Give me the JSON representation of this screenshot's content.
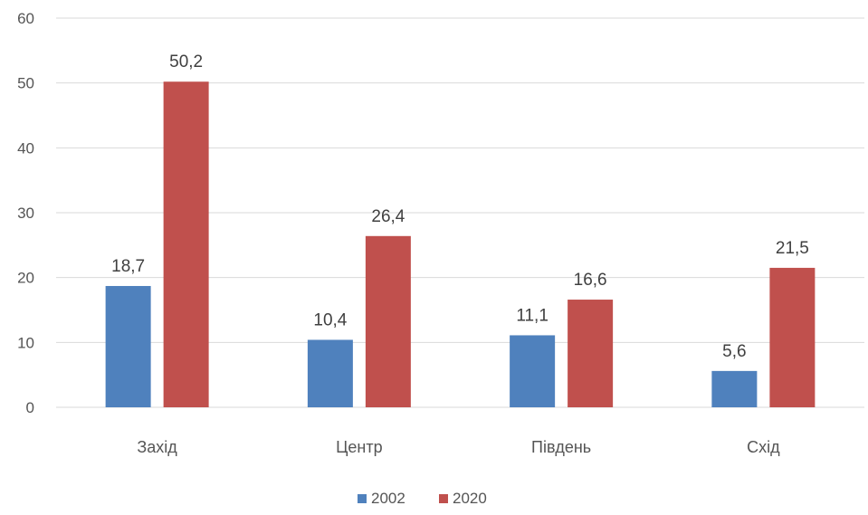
{
  "chart_data": {
    "type": "bar",
    "categories": [
      "Захід",
      "Центр",
      "Південь",
      "Схід"
    ],
    "series": [
      {
        "name": "2002",
        "values": [
          18.7,
          10.4,
          11.1,
          5.6
        ],
        "labels": [
          "18,7",
          "10,4",
          "11,1",
          "5,6"
        ],
        "color": "#4F81BD"
      },
      {
        "name": "2020",
        "values": [
          50.2,
          26.4,
          16.6,
          21.5
        ],
        "labels": [
          "50,2",
          "26,4",
          "16,6",
          "21,5"
        ],
        "color": "#C0504D"
      }
    ],
    "yticks": [
      "0",
      "10",
      "20",
      "30",
      "40",
      "50",
      "60"
    ],
    "ylim": [
      0,
      60
    ],
    "grid": true,
    "legend_position": "bottom"
  }
}
